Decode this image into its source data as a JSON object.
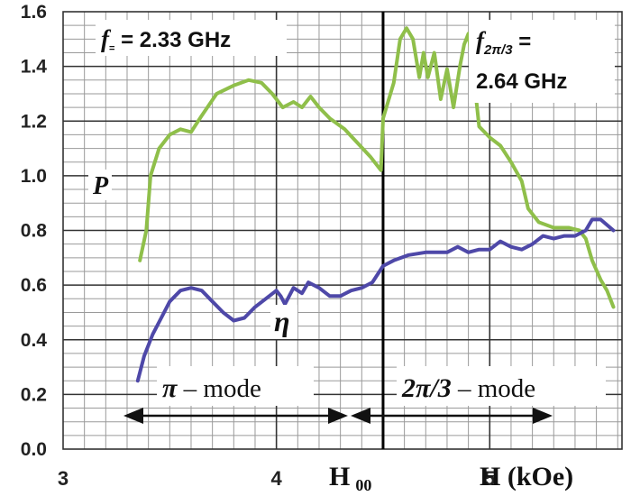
{
  "chart_data": {
    "type": "line",
    "title": "",
    "xlabel": "H (kOe)",
    "ylabel": "",
    "xlim": [
      3,
      5.62
    ],
    "ylim": [
      0,
      1.6
    ],
    "grid": true,
    "y_ticks": [
      "0.0",
      "0.2",
      "0.4",
      "0.6",
      "0.8",
      "1.0",
      "1.2",
      "1.4",
      "1.6"
    ],
    "x_ticks": [
      {
        "value": 3,
        "label": "3"
      },
      {
        "value": 4,
        "label": "4"
      },
      {
        "value": 5,
        "label": "5"
      }
    ],
    "h00": {
      "value": 4.5,
      "label": "H",
      "sub": "00"
    },
    "series": [
      {
        "name": "P",
        "color": "#8fbf4a",
        "points": [
          [
            3.36,
            0.69
          ],
          [
            3.39,
            0.8
          ],
          [
            3.41,
            1.0
          ],
          [
            3.45,
            1.1
          ],
          [
            3.5,
            1.15
          ],
          [
            3.55,
            1.17
          ],
          [
            3.6,
            1.16
          ],
          [
            3.65,
            1.22
          ],
          [
            3.72,
            1.3
          ],
          [
            3.8,
            1.33
          ],
          [
            3.87,
            1.35
          ],
          [
            3.93,
            1.34
          ],
          [
            3.98,
            1.3
          ],
          [
            4.03,
            1.25
          ],
          [
            4.08,
            1.27
          ],
          [
            4.12,
            1.25
          ],
          [
            4.16,
            1.29
          ],
          [
            4.2,
            1.25
          ],
          [
            4.25,
            1.21
          ],
          [
            4.32,
            1.17
          ],
          [
            4.38,
            1.12
          ],
          [
            4.44,
            1.07
          ],
          [
            4.49,
            1.02
          ],
          [
            4.5,
            1.21
          ],
          [
            4.55,
            1.34
          ],
          [
            4.58,
            1.5
          ],
          [
            4.61,
            1.54
          ],
          [
            4.64,
            1.5
          ],
          [
            4.67,
            1.36
          ],
          [
            4.69,
            1.45
          ],
          [
            4.71,
            1.36
          ],
          [
            4.74,
            1.45
          ],
          [
            4.77,
            1.28
          ],
          [
            4.8,
            1.39
          ],
          [
            4.83,
            1.25
          ],
          [
            4.86,
            1.4
          ],
          [
            4.88,
            1.48
          ],
          [
            4.9,
            1.52
          ],
          [
            4.92,
            1.4
          ],
          [
            4.95,
            1.18
          ],
          [
            5.0,
            1.14
          ],
          [
            5.05,
            1.11
          ],
          [
            5.1,
            1.05
          ],
          [
            5.15,
            0.98
          ],
          [
            5.18,
            0.88
          ],
          [
            5.23,
            0.83
          ],
          [
            5.3,
            0.81
          ],
          [
            5.37,
            0.81
          ],
          [
            5.42,
            0.8
          ],
          [
            5.45,
            0.77
          ],
          [
            5.48,
            0.69
          ],
          [
            5.52,
            0.62
          ],
          [
            5.55,
            0.58
          ],
          [
            5.58,
            0.52
          ]
        ]
      },
      {
        "name": "η",
        "color": "#4e48a8",
        "points": [
          [
            3.35,
            0.25
          ],
          [
            3.38,
            0.34
          ],
          [
            3.42,
            0.42
          ],
          [
            3.46,
            0.48
          ],
          [
            3.5,
            0.54
          ],
          [
            3.55,
            0.58
          ],
          [
            3.6,
            0.59
          ],
          [
            3.65,
            0.58
          ],
          [
            3.7,
            0.54
          ],
          [
            3.75,
            0.5
          ],
          [
            3.8,
            0.47
          ],
          [
            3.85,
            0.48
          ],
          [
            3.9,
            0.52
          ],
          [
            3.95,
            0.55
          ],
          [
            4.0,
            0.58
          ],
          [
            4.02,
            0.56
          ],
          [
            4.04,
            0.53
          ],
          [
            4.06,
            0.56
          ],
          [
            4.08,
            0.59
          ],
          [
            4.12,
            0.57
          ],
          [
            4.15,
            0.61
          ],
          [
            4.2,
            0.59
          ],
          [
            4.25,
            0.56
          ],
          [
            4.3,
            0.56
          ],
          [
            4.35,
            0.58
          ],
          [
            4.4,
            0.59
          ],
          [
            4.45,
            0.61
          ],
          [
            4.5,
            0.67
          ],
          [
            4.55,
            0.69
          ],
          [
            4.62,
            0.71
          ],
          [
            4.7,
            0.72
          ],
          [
            4.8,
            0.72
          ],
          [
            4.85,
            0.74
          ],
          [
            4.9,
            0.72
          ],
          [
            4.95,
            0.73
          ],
          [
            5.0,
            0.73
          ],
          [
            5.05,
            0.76
          ],
          [
            5.1,
            0.74
          ],
          [
            5.15,
            0.73
          ],
          [
            5.2,
            0.75
          ],
          [
            5.25,
            0.78
          ],
          [
            5.3,
            0.77
          ],
          [
            5.35,
            0.78
          ],
          [
            5.4,
            0.78
          ],
          [
            5.45,
            0.8
          ],
          [
            5.48,
            0.84
          ],
          [
            5.52,
            0.84
          ],
          [
            5.58,
            0.8
          ]
        ]
      }
    ],
    "annotations": {
      "f_pi": {
        "prefix": "f",
        "sub": "=",
        "value": " = 2.33 GHz"
      },
      "f_2pi3": {
        "prefix": "f",
        "sub": "2π/3",
        "eq": " =",
        "value": "2.64 GHz"
      },
      "p_label": "P",
      "eta_label": "η",
      "pi_mode": {
        "symbol": "π",
        "text": " – mode"
      },
      "two_pi3_mode": {
        "symbol": "2π/3",
        "text": " – mode"
      }
    }
  }
}
